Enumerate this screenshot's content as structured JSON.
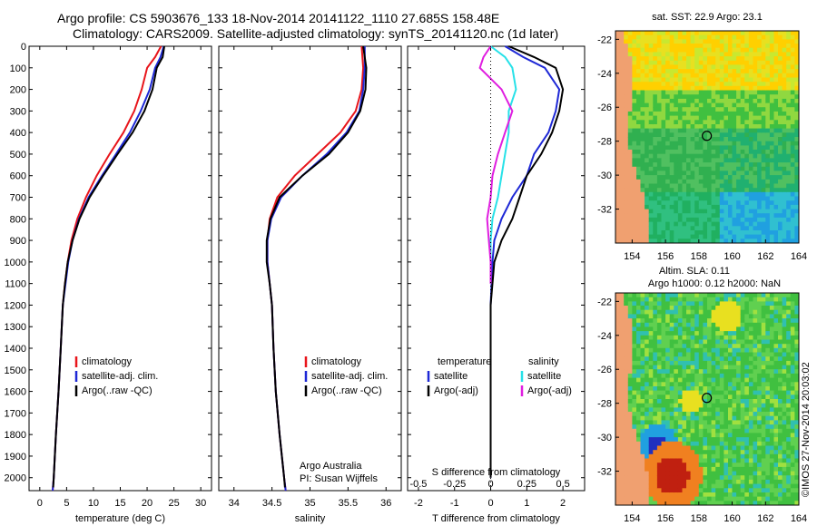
{
  "title": {
    "line1": "Argo profile: CS 5903676_133 18-Nov-2014 20141122_1110 27.685S 158.48E",
    "line2": "Climatology: CARS2009. Satellite-adjusted climatology: synTS_20141120.nc (1d later)"
  },
  "colors": {
    "climatology": "#e8151b",
    "satellite": "#1e28d6",
    "argo": "#000000",
    "satellite_s": "#27e1e8",
    "argo_s": "#e01ee0"
  },
  "chart_data": [
    {
      "type": "line",
      "xlabel": "temperature (deg C)",
      "ylabel": "",
      "xlim": [
        -2,
        32
      ],
      "ylim": [
        2060,
        0
      ],
      "xticks": [
        0,
        5,
        10,
        15,
        20,
        25,
        30
      ],
      "yticks": [
        0,
        100,
        200,
        300,
        400,
        500,
        600,
        700,
        800,
        900,
        1000,
        1100,
        1200,
        1300,
        1400,
        1500,
        1600,
        1700,
        1800,
        1900,
        2000
      ],
      "legend": [
        "climatology",
        "satellite-adj. clim.",
        "Argo(..raw -QC)"
      ],
      "legend_loc": "lower-left",
      "series": [
        {
          "name": "climatology",
          "color": "#e8151b",
          "points": [
            [
              22.6,
              0
            ],
            [
              21.5,
              50
            ],
            [
              20.0,
              100
            ],
            [
              19.0,
              200
            ],
            [
              17.6,
              300
            ],
            [
              15.6,
              400
            ],
            [
              13.0,
              500
            ],
            [
              10.6,
              600
            ],
            [
              8.6,
              700
            ],
            [
              7.0,
              800
            ],
            [
              5.9,
              900
            ],
            [
              5.2,
              1000
            ],
            [
              4.7,
              1100
            ],
            [
              4.3,
              1200
            ],
            [
              3.9,
              1400
            ],
            [
              3.5,
              1600
            ],
            [
              3.0,
              1800
            ],
            [
              2.6,
              2000
            ],
            [
              2.4,
              2060
            ]
          ]
        },
        {
          "name": "satellite-adj. clim.",
          "color": "#1e28d6",
          "points": [
            [
              23.1,
              0
            ],
            [
              22.5,
              50
            ],
            [
              21.5,
              100
            ],
            [
              20.5,
              200
            ],
            [
              18.8,
              300
            ],
            [
              16.8,
              400
            ],
            [
              14.2,
              500
            ],
            [
              11.6,
              600
            ],
            [
              9.1,
              700
            ],
            [
              7.3,
              800
            ],
            [
              6.1,
              900
            ],
            [
              5.3,
              1000
            ],
            [
              4.8,
              1100
            ],
            [
              4.3,
              1200
            ],
            [
              3.9,
              1400
            ],
            [
              3.5,
              1600
            ],
            [
              3.0,
              1800
            ],
            [
              2.6,
              2000
            ],
            [
              2.4,
              2060
            ]
          ]
        },
        {
          "name": "Argo(..raw -QC)",
          "color": "#000000",
          "points": [
            [
              23.2,
              0
            ],
            [
              22.9,
              50
            ],
            [
              21.8,
              100
            ],
            [
              21.0,
              200
            ],
            [
              19.5,
              300
            ],
            [
              17.3,
              400
            ],
            [
              14.5,
              500
            ],
            [
              11.8,
              600
            ],
            [
              9.3,
              700
            ],
            [
              7.4,
              800
            ],
            [
              6.1,
              900
            ],
            [
              5.2,
              1000
            ],
            [
              4.7,
              1100
            ],
            [
              4.3,
              1200
            ],
            [
              3.9,
              1400
            ],
            [
              3.5,
              1600
            ],
            [
              3.0,
              1800
            ],
            [
              2.6,
              2000
            ],
            [
              2.5,
              2045
            ]
          ]
        }
      ]
    },
    {
      "type": "line",
      "xlabel": "salinity",
      "ylabel": "",
      "xlim": [
        33.8,
        36.2
      ],
      "ylim": [
        2060,
        0
      ],
      "xticks": [
        34,
        34.5,
        35,
        35.5,
        36
      ],
      "legend": [
        "climatology",
        "satellite-adj. clim.",
        "Argo(..raw -QC)"
      ],
      "legend_loc": "lower-right",
      "annotation": [
        "Argo Australia",
        "PI: Susan Wijffels"
      ],
      "series": [
        {
          "name": "climatology",
          "color": "#e8151b",
          "points": [
            [
              35.68,
              0
            ],
            [
              35.7,
              100
            ],
            [
              35.68,
              200
            ],
            [
              35.6,
              300
            ],
            [
              35.4,
              400
            ],
            [
              35.1,
              500
            ],
            [
              34.8,
              600
            ],
            [
              34.57,
              700
            ],
            [
              34.47,
              800
            ],
            [
              34.44,
              900
            ],
            [
              34.44,
              1000
            ],
            [
              34.47,
              1100
            ],
            [
              34.5,
              1200
            ],
            [
              34.52,
              1400
            ],
            [
              34.55,
              1600
            ],
            [
              34.6,
              1800
            ],
            [
              34.66,
              2000
            ],
            [
              34.68,
              2060
            ]
          ]
        },
        {
          "name": "satellite-adj. clim.",
          "color": "#1e28d6",
          "points": [
            [
              35.72,
              0
            ],
            [
              35.72,
              100
            ],
            [
              35.7,
              200
            ],
            [
              35.65,
              300
            ],
            [
              35.48,
              400
            ],
            [
              35.22,
              500
            ],
            [
              34.9,
              600
            ],
            [
              34.62,
              700
            ],
            [
              34.49,
              800
            ],
            [
              34.44,
              900
            ],
            [
              34.44,
              1000
            ],
            [
              34.47,
              1100
            ],
            [
              34.5,
              1200
            ],
            [
              34.52,
              1400
            ],
            [
              34.55,
              1600
            ],
            [
              34.6,
              1800
            ],
            [
              34.66,
              2000
            ],
            [
              34.68,
              2060
            ]
          ]
        },
        {
          "name": "Argo(..raw -QC)",
          "color": "#000000",
          "points": [
            [
              35.7,
              0
            ],
            [
              35.74,
              100
            ],
            [
              35.73,
              200
            ],
            [
              35.66,
              300
            ],
            [
              35.5,
              400
            ],
            [
              35.25,
              500
            ],
            [
              34.9,
              600
            ],
            [
              34.6,
              700
            ],
            [
              34.48,
              800
            ],
            [
              34.43,
              900
            ],
            [
              34.43,
              1000
            ],
            [
              34.47,
              1100
            ],
            [
              34.5,
              1200
            ],
            [
              34.52,
              1400
            ],
            [
              34.55,
              1600
            ],
            [
              34.6,
              1800
            ],
            [
              34.66,
              2000
            ],
            [
              34.67,
              2045
            ]
          ]
        }
      ]
    },
    {
      "type": "line",
      "xlabel": "T difference from climatology",
      "xlabel_top": "S difference from climatology",
      "xlim": [
        -2.3,
        2.6
      ],
      "ylim": [
        2060,
        0
      ],
      "xticks": [
        -2,
        -1,
        0,
        1,
        2
      ],
      "xticks_s": [
        "-0.5",
        "-0.25",
        "0",
        "0.25",
        "0.5"
      ],
      "legend_left": [
        "temperature",
        "satellite",
        "Argo(-adj)"
      ],
      "legend_right": [
        "salinity",
        "satellite",
        "Argo(-adj)"
      ],
      "series": [
        {
          "name": "satellite",
          "color": "#1e28d6",
          "points": [
            [
              0.4,
              0
            ],
            [
              0.9,
              50
            ],
            [
              1.5,
              100
            ],
            [
              1.9,
              200
            ],
            [
              1.8,
              300
            ],
            [
              1.6,
              400
            ],
            [
              1.2,
              500
            ],
            [
              1.0,
              600
            ],
            [
              0.6,
              700
            ],
            [
              0.3,
              800
            ],
            [
              0.1,
              900
            ],
            [
              0.05,
              1000
            ],
            [
              0.0,
              1200
            ],
            [
              0.0,
              1600
            ],
            [
              0.0,
              2000
            ]
          ]
        },
        {
          "name": "Argo(-adj)",
          "color": "#000000",
          "points": [
            [
              0.5,
              0
            ],
            [
              1.2,
              50
            ],
            [
              1.8,
              100
            ],
            [
              2.0,
              200
            ],
            [
              1.9,
              300
            ],
            [
              1.7,
              400
            ],
            [
              1.4,
              500
            ],
            [
              1.0,
              600
            ],
            [
              0.8,
              700
            ],
            [
              0.6,
              800
            ],
            [
              0.3,
              900
            ],
            [
              0.1,
              1000
            ],
            [
              0.05,
              1100
            ],
            [
              0.0,
              1200
            ],
            [
              0.0,
              1600
            ],
            [
              0.0,
              2000
            ]
          ]
        },
        {
          "name": "satellite",
          "color": "#27e1e8",
          "points": [
            [
              0.0,
              0
            ],
            [
              0.4,
              50
            ],
            [
              0.6,
              100
            ],
            [
              0.7,
              200
            ],
            [
              0.5,
              300
            ],
            [
              0.5,
              400
            ],
            [
              0.4,
              500
            ],
            [
              0.3,
              600
            ],
            [
              0.2,
              700
            ],
            [
              0.05,
              800
            ],
            [
              0.0,
              900
            ],
            [
              0.0,
              1000
            ],
            [
              0.0,
              1100
            ]
          ]
        },
        {
          "name": "Argo(-adj)",
          "color": "#e01ee0",
          "points": [
            [
              0.0,
              0
            ],
            [
              -0.2,
              50
            ],
            [
              -0.3,
              100
            ],
            [
              0.3,
              200
            ],
            [
              0.6,
              300
            ],
            [
              0.4,
              400
            ],
            [
              0.2,
              500
            ],
            [
              0.05,
              600
            ],
            [
              0.0,
              700
            ],
            [
              -0.1,
              800
            ],
            [
              -0.05,
              900
            ],
            [
              0.0,
              1000
            ],
            [
              0.0,
              1100
            ]
          ]
        }
      ]
    },
    {
      "type": "heatmap",
      "title": "sat. SST: 22.9  Argo: 23.1",
      "xlim": [
        153,
        164
      ],
      "ylim": [
        -34,
        -21.5
      ],
      "xticks": [
        154,
        156,
        158,
        160,
        162,
        164
      ],
      "yticks": [
        -22,
        -24,
        -26,
        -28,
        -30,
        -32
      ],
      "marker": [
        158.48,
        -27.685
      ]
    },
    {
      "type": "heatmap",
      "title": "Altim. SLA: 0.11",
      "subtitle": "Argo h1000: 0.12 h2000: NaN",
      "xlim": [
        153,
        164
      ],
      "ylim": [
        -34,
        -21.5
      ],
      "xticks": [
        154,
        156,
        158,
        160,
        162,
        164
      ],
      "yticks": [
        -22,
        -24,
        -26,
        -28,
        -30,
        -32
      ],
      "marker": [
        158.48,
        -27.685
      ]
    }
  ],
  "footer_vertical": "©IMOS 27-Nov-2014 20:03:02"
}
